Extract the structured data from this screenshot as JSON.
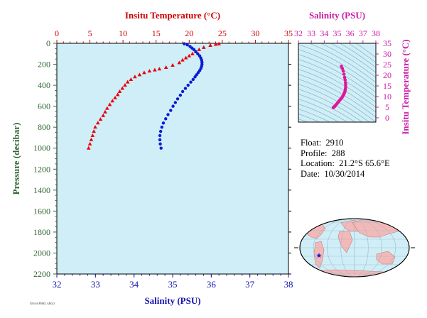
{
  "chart_data": [
    {
      "id": "profile",
      "type": "scatter",
      "title": "",
      "top_axis": {
        "label": "Insitu Temperature (°C)",
        "range": [
          0,
          35
        ],
        "ticks": [
          0,
          5,
          10,
          15,
          20,
          25,
          30,
          35
        ]
      },
      "bottom_axis": {
        "label": "Salinity (PSU)",
        "range": [
          32,
          38
        ],
        "ticks": [
          32,
          33,
          34,
          35,
          36,
          37,
          38
        ]
      },
      "y_axis": {
        "label": "Pressure (decibar)",
        "range": [
          0,
          2200
        ],
        "inverted": true,
        "ticks": [
          0,
          200,
          400,
          600,
          800,
          1000,
          1200,
          1400,
          1600,
          1800,
          2000,
          2200
        ]
      },
      "grid": false,
      "series": [
        {
          "kind": "temperature",
          "axis": "top",
          "color": "#e8000b",
          "marker": "triangle",
          "points": [
            [
              24.5,
              5
            ],
            [
              24.0,
              10
            ],
            [
              23.2,
              20
            ],
            [
              22.2,
              40
            ],
            [
              21.5,
              60
            ],
            [
              21.0,
              80
            ],
            [
              20.5,
              100
            ],
            [
              20.0,
              120
            ],
            [
              19.5,
              140
            ],
            [
              19.0,
              160
            ],
            [
              18.5,
              185
            ],
            [
              17.5,
              210
            ],
            [
              16.5,
              230
            ],
            [
              15.5,
              245
            ],
            [
              14.8,
              255
            ],
            [
              14.0,
              265
            ],
            [
              13.2,
              280
            ],
            [
              12.5,
              300
            ],
            [
              11.8,
              320
            ],
            [
              11.2,
              345
            ],
            [
              10.7,
              370
            ],
            [
              10.3,
              400
            ],
            [
              9.9,
              430
            ],
            [
              9.5,
              460
            ],
            [
              9.2,
              490
            ],
            [
              8.8,
              520
            ],
            [
              8.4,
              550
            ],
            [
              8.0,
              585
            ],
            [
              7.6,
              620
            ],
            [
              7.3,
              655
            ],
            [
              7.0,
              690
            ],
            [
              6.6,
              725
            ],
            [
              6.2,
              760
            ],
            [
              5.8,
              800
            ],
            [
              5.6,
              840
            ],
            [
              5.4,
              880
            ],
            [
              5.2,
              920
            ],
            [
              5.0,
              960
            ],
            [
              4.8,
              1000
            ]
          ]
        },
        {
          "kind": "salinity",
          "axis": "bottom",
          "color": "#0a1bd6",
          "marker": "circle",
          "points": [
            [
              35.3,
              5
            ],
            [
              35.38,
              15
            ],
            [
              35.45,
              30
            ],
            [
              35.5,
              45
            ],
            [
              35.55,
              60
            ],
            [
              35.6,
              80
            ],
            [
              35.65,
              100
            ],
            [
              35.7,
              120
            ],
            [
              35.73,
              140
            ],
            [
              35.75,
              160
            ],
            [
              35.76,
              180
            ],
            [
              35.76,
              200
            ],
            [
              35.75,
              220
            ],
            [
              35.73,
              240
            ],
            [
              35.7,
              260
            ],
            [
              35.66,
              280
            ],
            [
              35.62,
              300
            ],
            [
              35.58,
              320
            ],
            [
              35.53,
              345
            ],
            [
              35.47,
              370
            ],
            [
              35.4,
              400
            ],
            [
              35.33,
              430
            ],
            [
              35.26,
              460
            ],
            [
              35.2,
              495
            ],
            [
              35.13,
              530
            ],
            [
              35.07,
              565
            ],
            [
              35.01,
              600
            ],
            [
              34.95,
              640
            ],
            [
              34.88,
              680
            ],
            [
              34.82,
              720
            ],
            [
              34.76,
              760
            ],
            [
              34.72,
              800
            ],
            [
              34.69,
              840
            ],
            [
              34.67,
              880
            ],
            [
              34.67,
              920
            ],
            [
              34.68,
              960
            ],
            [
              34.7,
              1000
            ]
          ]
        }
      ]
    },
    {
      "id": "ts-diagram",
      "type": "scatter",
      "title": "",
      "top_axis": {
        "label": "Salinity (PSU)",
        "range": [
          32,
          38
        ],
        "ticks": [
          32,
          33,
          34,
          35,
          36,
          37,
          38
        ]
      },
      "right_axis": {
        "label": "Insitu Temperature (°C)",
        "range": [
          -2,
          35
        ],
        "ticks": [
          0,
          5,
          10,
          15,
          20,
          25,
          30,
          35
        ]
      },
      "grid": false,
      "color": "#e0159a",
      "points": [
        [
          35.33,
          24.2
        ],
        [
          35.4,
          23.2
        ],
        [
          35.47,
          22.0
        ],
        [
          35.53,
          20.5
        ],
        [
          35.58,
          19.0
        ],
        [
          35.62,
          17.8
        ],
        [
          35.65,
          16.5
        ],
        [
          35.66,
          15.5
        ],
        [
          35.66,
          14.5
        ],
        [
          35.64,
          13.6
        ],
        [
          35.62,
          12.8
        ],
        [
          35.58,
          12.0
        ],
        [
          35.54,
          11.4
        ],
        [
          35.5,
          10.8
        ],
        [
          35.44,
          10.2
        ],
        [
          35.38,
          9.6
        ],
        [
          35.3,
          9.0
        ],
        [
          35.22,
          8.4
        ],
        [
          35.14,
          7.8
        ],
        [
          35.06,
          7.2
        ],
        [
          34.98,
          6.6
        ],
        [
          34.9,
          6.0
        ],
        [
          34.83,
          5.5
        ],
        [
          34.76,
          5.1
        ],
        [
          34.7,
          4.8
        ]
      ]
    }
  ],
  "float_info": [
    {
      "label": "Float:",
      "value": "2910"
    },
    {
      "label": "Profile:",
      "value": "288"
    },
    {
      "label": "Location:",
      "value": "21.2°S  65.6°E"
    },
    {
      "label": "Date:",
      "value": "10/30/2014"
    }
  ],
  "footer": "NOAA/PMEL ARGO",
  "colors": {
    "temperature": "#e8000b",
    "salinity": "#0a1bd6",
    "ts": "#e0159a",
    "axis_temp": "#cc0000",
    "axis_sal": "#1414b0",
    "axis_pressure": "#336633",
    "axis_ts": "#cc1aa6",
    "plot_bg": "#cfeef7",
    "land": "#f3b9b9",
    "ocean": "#cfeef7",
    "marker": "#1b1bd0"
  }
}
